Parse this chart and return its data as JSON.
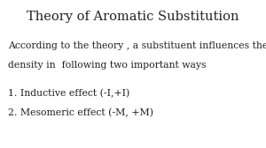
{
  "title": "Theory of Aromatic Substitution",
  "body_line1": "According to the theory , a substituent influences the electron",
  "body_line2": "density in  following two important ways",
  "point1": "1. Inductive effect (-I,+I)",
  "point2": "2. Mesomeric effect (-M, +M)",
  "bg_color": "#ffffff",
  "title_fontsize": 10.5,
  "body_fontsize": 7.8,
  "points_fontsize": 7.8,
  "title_color": "#222222",
  "body_color": "#222222"
}
